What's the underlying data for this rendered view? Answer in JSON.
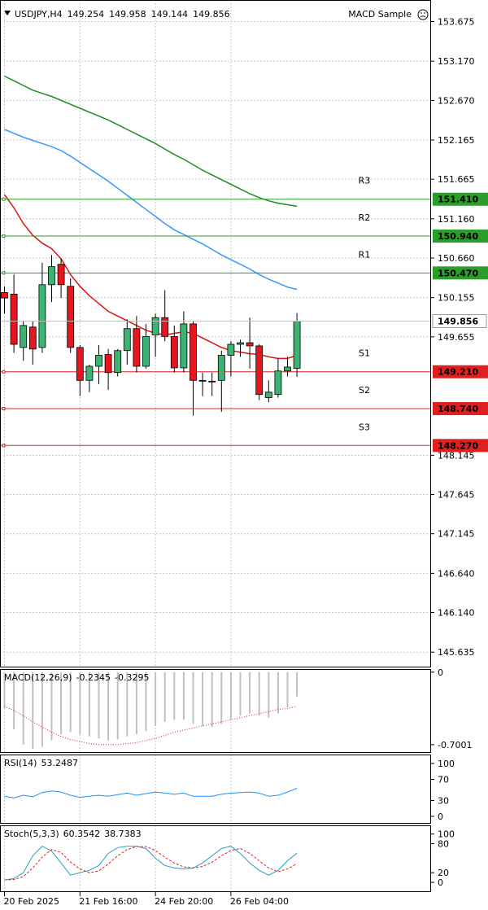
{
  "chart_data": [
    {
      "type": "candlestick",
      "title": "USDJPY,H4",
      "expert": "MACD Sample",
      "categories": [
        "20 Feb 2025",
        null,
        null,
        null,
        null,
        null,
        null,
        null,
        "21 Feb 16:00",
        null,
        null,
        null,
        null,
        null,
        null,
        null,
        "24 Feb 20:00",
        null,
        null,
        null,
        null,
        null,
        null,
        null,
        "26 Feb 04:00",
        null,
        null,
        null,
        null,
        null,
        null,
        null
      ],
      "open": [
        150.22,
        150.2,
        149.52,
        149.78,
        149.52,
        150.32,
        150.58,
        150.3,
        149.52,
        149.1,
        149.28,
        149.43,
        149.2,
        149.48,
        149.76,
        149.28,
        149.68,
        149.9,
        149.66,
        149.26,
        149.82,
        149.1,
        149.09,
        149.1,
        149.42,
        149.56,
        149.58,
        149.54,
        148.88,
        148.92,
        149.22,
        149.254
      ],
      "high": [
        150.3,
        150.45,
        149.85,
        149.85,
        150.6,
        150.7,
        150.65,
        150.4,
        149.55,
        149.3,
        149.55,
        149.5,
        149.5,
        149.88,
        149.92,
        149.82,
        149.95,
        150.25,
        149.8,
        149.98,
        149.85,
        149.2,
        149.2,
        149.48,
        149.6,
        149.62,
        149.9,
        149.56,
        149.1,
        149.38,
        149.4,
        149.958
      ],
      "low": [
        149.95,
        149.45,
        149.35,
        149.3,
        149.45,
        150.1,
        150.15,
        149.45,
        148.9,
        148.95,
        149.05,
        148.98,
        149.15,
        149.3,
        149.2,
        149.25,
        149.4,
        149.6,
        149.2,
        149.2,
        148.65,
        148.9,
        148.9,
        148.7,
        149.15,
        149.4,
        149.25,
        148.85,
        148.82,
        148.88,
        149.15,
        149.144
      ],
      "close": [
        150.15,
        149.56,
        149.8,
        149.5,
        150.32,
        150.55,
        150.32,
        149.52,
        149.1,
        149.28,
        149.42,
        149.2,
        149.48,
        149.76,
        149.28,
        149.66,
        149.9,
        149.66,
        149.26,
        149.82,
        149.1,
        149.09,
        149.08,
        149.42,
        149.56,
        149.58,
        149.54,
        148.92,
        148.95,
        149.22,
        149.27,
        149.856
      ],
      "up_color": "#3cb371",
      "down_color": "#e8141e",
      "lines": [
        {
          "color": "#1e8c1e",
          "values": [
            152.98,
            152.92,
            152.86,
            152.8,
            152.76,
            152.72,
            152.67,
            152.62,
            152.57,
            152.52,
            152.47,
            152.42,
            152.36,
            152.3,
            152.24,
            152.18,
            152.12,
            152.05,
            151.98,
            151.92,
            151.85,
            151.78,
            151.72,
            151.66,
            151.6,
            151.54,
            151.48,
            151.43,
            151.39,
            151.36,
            151.34,
            151.32
          ]
        },
        {
          "color": "#3399ff",
          "values": [
            152.3,
            152.25,
            152.2,
            152.16,
            152.12,
            152.08,
            152.03,
            151.96,
            151.88,
            151.8,
            151.72,
            151.64,
            151.55,
            151.46,
            151.37,
            151.28,
            151.19,
            151.1,
            151.02,
            150.96,
            150.9,
            150.84,
            150.77,
            150.7,
            150.64,
            150.58,
            150.52,
            150.45,
            150.39,
            150.34,
            150.29,
            150.26
          ]
        },
        {
          "color": "#e01010",
          "values": [
            151.47,
            151.3,
            151.1,
            150.95,
            150.85,
            150.78,
            150.65,
            150.45,
            150.3,
            150.18,
            150.08,
            149.98,
            149.92,
            149.86,
            149.8,
            149.74,
            149.7,
            149.68,
            149.7,
            149.72,
            149.7,
            149.64,
            149.58,
            149.52,
            149.48,
            149.46,
            149.44,
            149.43,
            149.4,
            149.38,
            149.38,
            149.42
          ]
        }
      ],
      "levels": [
        {
          "name": "R3",
          "value": 151.41,
          "label": "151.410",
          "color": "#2a9d2a"
        },
        {
          "name": "R2",
          "value": 150.94,
          "label": "150.940",
          "color": "#2a9d2a"
        },
        {
          "name": "R1",
          "value": 150.47,
          "label": "150.470",
          "color": "#2a9d2a"
        },
        {
          "name": "S1",
          "value": 149.21,
          "label": "149.210",
          "color": "#e02020"
        },
        {
          "name": "S2",
          "value": 148.74,
          "label": "148.740",
          "color": "#e02020"
        },
        {
          "name": "S3",
          "value": 148.27,
          "label": "148.270",
          "color": "#e02020"
        }
      ],
      "ylim": [
        145.44,
        153.95
      ],
      "yticks": [
        {
          "value": 153.675,
          "label": "153.675"
        },
        {
          "value": 153.17,
          "label": "153.170"
        },
        {
          "value": 152.67,
          "label": "152.670"
        },
        {
          "value": 152.165,
          "label": "152.165"
        },
        {
          "value": 151.665,
          "label": "151.665"
        },
        {
          "value": 151.16,
          "label": "151.160"
        },
        {
          "value": 150.66,
          "label": "150.660"
        },
        {
          "value": 150.155,
          "label": "150.155"
        },
        {
          "value": 149.655,
          "label": "149.655"
        },
        {
          "value": 148.145,
          "label": "148.145"
        },
        {
          "value": 147.645,
          "label": "147.645"
        },
        {
          "value": 147.145,
          "label": "147.145"
        },
        {
          "value": 146.64,
          "label": "146.640"
        },
        {
          "value": 146.14,
          "label": "146.140"
        },
        {
          "value": 145.635,
          "label": "145.635"
        }
      ],
      "grid": true
    },
    {
      "type": "macd",
      "title": "MACD(12,26,9)",
      "histogram": {
        "color": "#c0c0c0",
        "values": [
          -0.35,
          -0.55,
          -0.7,
          -0.74,
          -0.72,
          -0.66,
          -0.6,
          -0.58,
          -0.6,
          -0.62,
          -0.64,
          -0.66,
          -0.65,
          -0.62,
          -0.6,
          -0.57,
          -0.52,
          -0.48,
          -0.46,
          -0.46,
          -0.5,
          -0.52,
          -0.53,
          -0.5,
          -0.46,
          -0.42,
          -0.4,
          -0.42,
          -0.44,
          -0.4,
          -0.34,
          -0.2345
        ]
      },
      "signal": {
        "color": "#e02020",
        "style": "dotted",
        "values": [
          -0.33,
          -0.37,
          -0.42,
          -0.48,
          -0.53,
          -0.58,
          -0.62,
          -0.65,
          -0.67,
          -0.69,
          -0.7,
          -0.7,
          -0.7,
          -0.69,
          -0.68,
          -0.66,
          -0.64,
          -0.61,
          -0.58,
          -0.56,
          -0.54,
          -0.52,
          -0.5,
          -0.48,
          -0.46,
          -0.44,
          -0.42,
          -0.4,
          -0.38,
          -0.36,
          -0.35,
          -0.3295
        ]
      },
      "ylim": [
        -0.78,
        0.03
      ],
      "yticks": [
        0,
        -0.7001
      ]
    },
    {
      "type": "line",
      "title": "RSI(14)",
      "series": [
        {
          "color": "#1e90ff",
          "style": "solid",
          "values": [
            38,
            35,
            40,
            37,
            45,
            48,
            46,
            40,
            36,
            38,
            40,
            38,
            41,
            44,
            40,
            43,
            46,
            44,
            42,
            44,
            38,
            38,
            38,
            42,
            44,
            45,
            46,
            44,
            38,
            40,
            46,
            53.2487
          ]
        }
      ],
      "ylim": [
        -14,
        117
      ],
      "yticks": [
        100,
        70,
        30,
        0
      ]
    },
    {
      "type": "line",
      "title": "Stoch(5,3,3)",
      "series": [
        {
          "color": "#20a0c0",
          "style": "solid",
          "values": [
            5,
            8,
            20,
            55,
            75,
            65,
            40,
            15,
            20,
            25,
            35,
            60,
            72,
            75,
            75,
            70,
            50,
            35,
            30,
            28,
            30,
            40,
            55,
            70,
            75,
            60,
            40,
            25,
            15,
            25,
            45,
            60.3542
          ]
        },
        {
          "color": "#e02020",
          "style": "dashed",
          "values": [
            5,
            6,
            12,
            30,
            52,
            68,
            62,
            42,
            28,
            20,
            24,
            38,
            55,
            68,
            74,
            74,
            66,
            52,
            40,
            32,
            30,
            33,
            42,
            55,
            66,
            70,
            60,
            45,
            30,
            22,
            28,
            38.7383
          ]
        }
      ],
      "ylim": [
        -20,
        118
      ],
      "yticks": [
        100,
        80,
        20,
        0
      ]
    }
  ]
}
